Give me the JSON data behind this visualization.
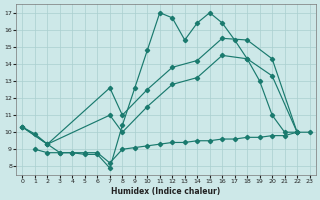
{
  "xlabel": "Humidex (Indice chaleur)",
  "xlim": [
    -0.5,
    23.5
  ],
  "ylim": [
    7.5,
    17.5
  ],
  "xticks": [
    0,
    1,
    2,
    3,
    4,
    5,
    6,
    7,
    8,
    9,
    10,
    11,
    12,
    13,
    14,
    15,
    16,
    17,
    18,
    19,
    20,
    21,
    22,
    23
  ],
  "yticks": [
    8,
    9,
    10,
    11,
    12,
    13,
    14,
    15,
    16,
    17
  ],
  "bg_color": "#cde8e8",
  "grid_color": "#aacfcf",
  "line_color": "#1a7a6e",
  "line1_x": [
    0,
    1,
    2,
    3,
    4,
    5,
    6,
    7,
    8,
    9,
    10,
    11,
    12,
    13,
    14,
    15,
    16,
    17,
    18,
    19,
    20,
    21,
    22,
    23
  ],
  "line1_y": [
    10.3,
    9.9,
    9.3,
    8.8,
    8.8,
    8.7,
    8.7,
    7.9,
    10.4,
    12.6,
    14.8,
    17.0,
    16.7,
    15.4,
    16.4,
    17.0,
    16.4,
    15.4,
    14.3,
    13.0,
    11.0,
    10.0,
    10.0,
    10.0
  ],
  "line2_x": [
    1,
    2,
    3,
    4,
    5,
    6,
    7,
    8,
    9,
    10,
    11,
    12,
    13,
    14,
    15,
    16,
    17,
    18,
    19,
    20,
    21,
    22
  ],
  "line2_y": [
    9.0,
    8.8,
    8.8,
    8.8,
    8.8,
    8.8,
    8.2,
    9.0,
    9.1,
    9.2,
    9.3,
    9.4,
    9.4,
    9.5,
    9.5,
    9.6,
    9.6,
    9.7,
    9.7,
    9.8,
    9.8,
    10.0
  ],
  "line3_x": [
    0,
    2,
    7,
    8,
    10,
    12,
    14,
    16,
    18,
    20,
    22
  ],
  "line3_y": [
    10.3,
    9.3,
    12.6,
    11.0,
    12.5,
    13.8,
    14.2,
    15.5,
    15.4,
    14.3,
    10.0
  ],
  "line4_x": [
    0,
    2,
    7,
    8,
    10,
    12,
    14,
    16,
    18,
    20,
    22
  ],
  "line4_y": [
    10.3,
    9.3,
    11.0,
    10.0,
    11.5,
    12.8,
    13.2,
    14.5,
    14.3,
    13.3,
    10.0
  ]
}
